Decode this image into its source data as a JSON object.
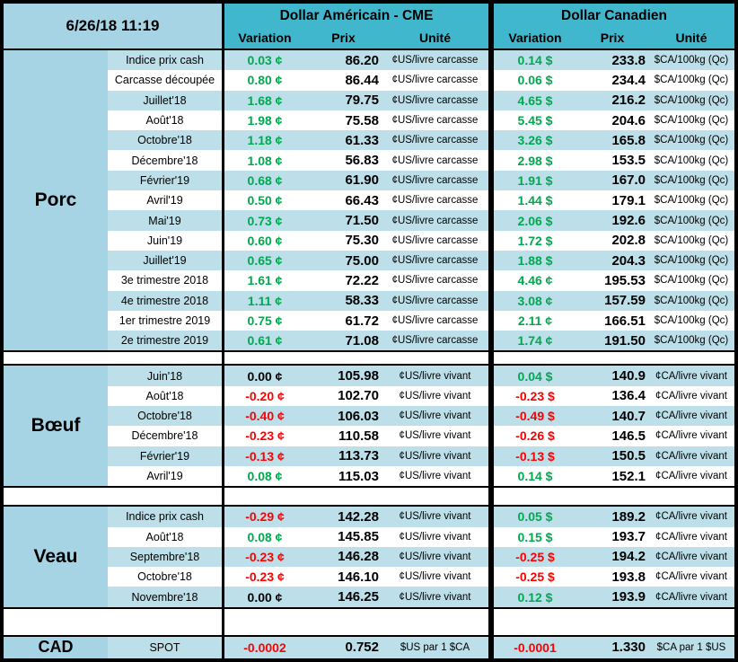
{
  "title_datetime": "6/26/18 11:19",
  "header": {
    "us_group": "Dollar Américain - CME",
    "ca_group": "Dollar Canadien",
    "col_variation": "Variation",
    "col_prix": "Prix",
    "col_unite": "Unité"
  },
  "colors": {
    "header_bg": "#41B7CE",
    "section_bg": "#A6D4E4",
    "row_alt_bg": "#BCDFEA",
    "row_bg": "#FFFFFF",
    "positive": "#00A94F",
    "negative": "#FF0000",
    "neutral": "#000000"
  },
  "sections": [
    {
      "name": "Porc",
      "rows": [
        {
          "label": "Indice prix cash",
          "us": {
            "variation": "0.03 ¢",
            "trend": "up",
            "prix": "86.20",
            "unit": "¢US/livre carcasse"
          },
          "ca": {
            "variation": "0.14 $",
            "trend": "up",
            "prix": "233.8",
            "unit": "$CA/100kg (Qc)"
          }
        },
        {
          "label": "Carcasse découpée",
          "us": {
            "variation": "0.80 ¢",
            "trend": "up",
            "prix": "86.44",
            "unit": "¢US/livre carcasse"
          },
          "ca": {
            "variation": "0.06 $",
            "trend": "up",
            "prix": "234.4",
            "unit": "$CA/100kg (Qc)"
          }
        },
        {
          "label": "Juillet'18",
          "us": {
            "variation": "1.68 ¢",
            "trend": "up",
            "prix": "79.75",
            "unit": "¢US/livre carcasse"
          },
          "ca": {
            "variation": "4.65 $",
            "trend": "up",
            "prix": "216.2",
            "unit": "$CA/100kg (Qc)"
          }
        },
        {
          "label": "Août'18",
          "us": {
            "variation": "1.98 ¢",
            "trend": "up",
            "prix": "75.58",
            "unit": "¢US/livre carcasse"
          },
          "ca": {
            "variation": "5.45 $",
            "trend": "up",
            "prix": "204.6",
            "unit": "$CA/100kg (Qc)"
          }
        },
        {
          "label": "Octobre'18",
          "us": {
            "variation": "1.18 ¢",
            "trend": "up",
            "prix": "61.33",
            "unit": "¢US/livre carcasse"
          },
          "ca": {
            "variation": "3.26 $",
            "trend": "up",
            "prix": "165.8",
            "unit": "$CA/100kg (Qc)"
          }
        },
        {
          "label": "Décembre'18",
          "us": {
            "variation": "1.08 ¢",
            "trend": "up",
            "prix": "56.83",
            "unit": "¢US/livre carcasse"
          },
          "ca": {
            "variation": "2.98 $",
            "trend": "up",
            "prix": "153.5",
            "unit": "$CA/100kg (Qc)"
          }
        },
        {
          "label": "Février'19",
          "us": {
            "variation": "0.68 ¢",
            "trend": "up",
            "prix": "61.90",
            "unit": "¢US/livre carcasse"
          },
          "ca": {
            "variation": "1.91 $",
            "trend": "up",
            "prix": "167.0",
            "unit": "$CA/100kg (Qc)"
          }
        },
        {
          "label": "Avril'19",
          "us": {
            "variation": "0.50 ¢",
            "trend": "up",
            "prix": "66.43",
            "unit": "¢US/livre carcasse"
          },
          "ca": {
            "variation": "1.44 $",
            "trend": "up",
            "prix": "179.1",
            "unit": "$CA/100kg (Qc)"
          }
        },
        {
          "label": "Mai'19",
          "us": {
            "variation": "0.73 ¢",
            "trend": "up",
            "prix": "71.50",
            "unit": "¢US/livre carcasse"
          },
          "ca": {
            "variation": "2.06 $",
            "trend": "up",
            "prix": "192.6",
            "unit": "$CA/100kg (Qc)"
          }
        },
        {
          "label": "Juin'19",
          "us": {
            "variation": "0.60 ¢",
            "trend": "up",
            "prix": "75.30",
            "unit": "¢US/livre carcasse"
          },
          "ca": {
            "variation": "1.72 $",
            "trend": "up",
            "prix": "202.8",
            "unit": "$CA/100kg (Qc)"
          }
        },
        {
          "label": "Juillet'19",
          "us": {
            "variation": "0.65 ¢",
            "trend": "up",
            "prix": "75.00",
            "unit": "¢US/livre carcasse"
          },
          "ca": {
            "variation": "1.88 $",
            "trend": "up",
            "prix": "204.3",
            "unit": "$CA/100kg (Qc)"
          }
        },
        {
          "label": "3e trimestre 2018",
          "us": {
            "variation": "1.61 ¢",
            "trend": "up",
            "prix": "72.22",
            "unit": "¢US/livre carcasse"
          },
          "ca": {
            "variation": "4.46 ¢",
            "trend": "up",
            "prix": "195.53",
            "unit": "$CA/100kg (Qc)"
          }
        },
        {
          "label": "4e trimestre 2018",
          "us": {
            "variation": "1.11 ¢",
            "trend": "up",
            "prix": "58.33",
            "unit": "¢US/livre carcasse"
          },
          "ca": {
            "variation": "3.08 ¢",
            "trend": "up",
            "prix": "157.59",
            "unit": "$CA/100kg (Qc)"
          }
        },
        {
          "label": "1er trimestre 2019",
          "us": {
            "variation": "0.75 ¢",
            "trend": "up",
            "prix": "61.72",
            "unit": "¢US/livre carcasse"
          },
          "ca": {
            "variation": "2.11 ¢",
            "trend": "up",
            "prix": "166.51",
            "unit": "$CA/100kg (Qc)"
          }
        },
        {
          "label": "2e trimestre 2019",
          "us": {
            "variation": "0.61 ¢",
            "trend": "up",
            "prix": "71.08",
            "unit": "¢US/livre carcasse"
          },
          "ca": {
            "variation": "1.74 ¢",
            "trend": "up",
            "prix": "191.50",
            "unit": "$CA/100kg (Qc)"
          }
        }
      ]
    },
    {
      "name": "Bœuf",
      "rows": [
        {
          "label": "Juin'18",
          "us": {
            "variation": "0.00 ¢",
            "trend": "flat",
            "prix": "105.98",
            "unit": "¢US/livre vivant"
          },
          "ca": {
            "variation": "0.04 $",
            "trend": "up",
            "prix": "140.9",
            "unit": "¢CA/livre vivant"
          }
        },
        {
          "label": "Août'18",
          "us": {
            "variation": "-0.20 ¢",
            "trend": "down",
            "prix": "102.70",
            "unit": "¢US/livre vivant"
          },
          "ca": {
            "variation": "-0.23 $",
            "trend": "down",
            "prix": "136.4",
            "unit": "¢CA/livre vivant"
          }
        },
        {
          "label": "Octobre'18",
          "us": {
            "variation": "-0.40 ¢",
            "trend": "down",
            "prix": "106.03",
            "unit": "¢US/livre vivant"
          },
          "ca": {
            "variation": "-0.49 $",
            "trend": "down",
            "prix": "140.7",
            "unit": "¢CA/livre vivant"
          }
        },
        {
          "label": "Décembre'18",
          "us": {
            "variation": "-0.23 ¢",
            "trend": "down",
            "prix": "110.58",
            "unit": "¢US/livre vivant"
          },
          "ca": {
            "variation": "-0.26 $",
            "trend": "down",
            "prix": "146.5",
            "unit": "¢CA/livre vivant"
          }
        },
        {
          "label": "Février'19",
          "us": {
            "variation": "-0.13 ¢",
            "trend": "down",
            "prix": "113.73",
            "unit": "¢US/livre vivant"
          },
          "ca": {
            "variation": "-0.13 $",
            "trend": "down",
            "prix": "150.5",
            "unit": "¢CA/livre vivant"
          }
        },
        {
          "label": "Avril'19",
          "us": {
            "variation": "0.08 ¢",
            "trend": "up",
            "prix": "115.03",
            "unit": "¢US/livre vivant"
          },
          "ca": {
            "variation": "0.14 $",
            "trend": "up",
            "prix": "152.1",
            "unit": "¢CA/livre vivant"
          }
        }
      ]
    },
    {
      "name": "Veau",
      "rows": [
        {
          "label": "Indice prix cash",
          "us": {
            "variation": "-0.29 ¢",
            "trend": "down",
            "prix": "142.28",
            "unit": "¢US/livre vivant"
          },
          "ca": {
            "variation": "0.05 $",
            "trend": "up",
            "prix": "189.2",
            "unit": "¢CA/livre vivant"
          }
        },
        {
          "label": "Août'18",
          "us": {
            "variation": "0.08 ¢",
            "trend": "up",
            "prix": "145.85",
            "unit": "¢US/livre vivant"
          },
          "ca": {
            "variation": "0.15 $",
            "trend": "up",
            "prix": "193.7",
            "unit": "¢CA/livre vivant"
          }
        },
        {
          "label": "Septembre'18",
          "us": {
            "variation": "-0.23 ¢",
            "trend": "down",
            "prix": "146.28",
            "unit": "¢US/livre vivant"
          },
          "ca": {
            "variation": "-0.25 $",
            "trend": "down",
            "prix": "194.2",
            "unit": "¢CA/livre vivant"
          }
        },
        {
          "label": "Octobre'18",
          "us": {
            "variation": "-0.23 ¢",
            "trend": "down",
            "prix": "146.10",
            "unit": "¢US/livre vivant"
          },
          "ca": {
            "variation": "-0.25 $",
            "trend": "down",
            "prix": "193.8",
            "unit": "¢CA/livre vivant"
          }
        },
        {
          "label": "Novembre'18",
          "us": {
            "variation": "0.00 ¢",
            "trend": "flat",
            "prix": "146.25",
            "unit": "¢US/livre vivant"
          },
          "ca": {
            "variation": "0.12 $",
            "trend": "up",
            "prix": "193.9",
            "unit": "¢CA/livre vivant"
          }
        }
      ]
    },
    {
      "name": "CAD",
      "rows": [
        {
          "label": "SPOT",
          "us": {
            "variation": "-0.0002",
            "trend": "down",
            "prix": "0.752",
            "unit": "$US par 1 $CA"
          },
          "ca": {
            "variation": "-0.0001",
            "trend": "down",
            "prix": "1.330",
            "unit": "$CA par 1 $US"
          }
        }
      ]
    }
  ]
}
